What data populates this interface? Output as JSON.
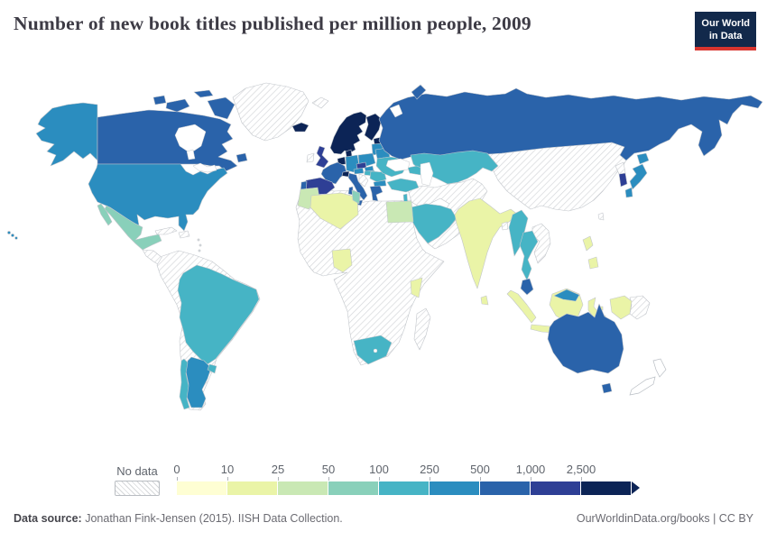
{
  "header": {
    "title": "Number of new book titles published per million people, 2009"
  },
  "logo": {
    "line1": "Our World",
    "line2": "in Data",
    "bg": "#12294b",
    "accent": "#d8352f"
  },
  "legend": {
    "no_data_label": "No data",
    "ticks": [
      "0",
      "10",
      "25",
      "50",
      "100",
      "250",
      "500",
      "1,000",
      "2,500"
    ],
    "colors": [
      "#fefed3",
      "#eaf4a7",
      "#c9e8b4",
      "#89d0ba",
      "#46b4c5",
      "#2b8dbf",
      "#2a63aa",
      "#2e3f95",
      "#0c2456"
    ]
  },
  "footer": {
    "source_label": "Data source:",
    "source_text": " Jonathan Fink-Jensen (2015). IISH Data Collection.",
    "right_text": "OurWorldinData.org/books | CC BY"
  },
  "map": {
    "palette": {
      "b0": "#fefed3",
      "b1": "#eaf4a7",
      "b2": "#c9e8b4",
      "b3": "#89d0ba",
      "b4": "#46b4c5",
      "b5": "#2b8dbf",
      "b6": "#2a63aa",
      "b7": "#2e3f95",
      "b8": "#0c2456",
      "none": "#ffffff"
    },
    "countries": {
      "canada": "b6",
      "usa": "b5",
      "alaska": "b5",
      "hawaii": "b5",
      "greenland": "no_data",
      "mexico": "b3",
      "central_america": "no_data",
      "cuba": "no_data",
      "hispaniola": "no_data",
      "south_america_other": "no_data",
      "brazil": "b4",
      "argentina": "b5",
      "chile": "b4",
      "uruguay": "b4",
      "iceland": "b8",
      "scandinavia": "b8",
      "finland": "b8",
      "denmark": "b8",
      "estonia": "b8",
      "latvia_lithuania": "b5",
      "benelux": "b8",
      "uk": "b7",
      "ireland": "no_data",
      "germany": "b5",
      "poland": "b5",
      "france": "b6",
      "spain": "b7",
      "portugal": "b6",
      "switzerland": "b8",
      "italy": "b6",
      "austria": "b5",
      "czech": "b7",
      "slovakia": "b5",
      "hungary": "b4",
      "balkans": "no_data",
      "romania": "b4",
      "bulgaria": "b5",
      "greece": "b6",
      "belarus": "b5",
      "ukraine": "b4",
      "russia": "b6",
      "novaya_zemlya": "b6",
      "svalbard": "no_data",
      "kazakhstan_central_asia": "b4",
      "caucasus": "b4",
      "turkey": "b4",
      "israel_lebanon": "b4",
      "middle_east": "no_data",
      "saudi_arabia": "b4",
      "yemen_oman": "no_data",
      "africa": "no_data",
      "morocco": "b2",
      "algeria": "b1",
      "tunisia": "b3",
      "egypt": "b2",
      "nigeria": "b1",
      "kenya": "b1",
      "south_africa": "b4",
      "madagascar": "no_data",
      "india": "b1",
      "sri_lanka": "b1",
      "bangladesh": "no_data",
      "china_mongolia": "no_data",
      "north_korea": "no_data",
      "south_korea": "b7",
      "japan": "b5",
      "taiwan": "no_data",
      "myanmar": "b4",
      "thailand": "b4",
      "indochina": "no_data",
      "malaysia_peninsula": "b6",
      "malaysia_borneo": "b5",
      "indonesia_sumatra": "b1",
      "indonesia_java": "b1",
      "indonesia_borneo": "b1",
      "sulawesi": "b1",
      "lesser_sunda": "b1",
      "maluku": "b1",
      "indonesia_papua": "b1",
      "papua_new_guinea": "no_data",
      "philippines_luzon": "b1",
      "philippines_mindanao": "b1",
      "australia": "b6",
      "tasmania": "b6",
      "new_zealand": "none"
    }
  }
}
